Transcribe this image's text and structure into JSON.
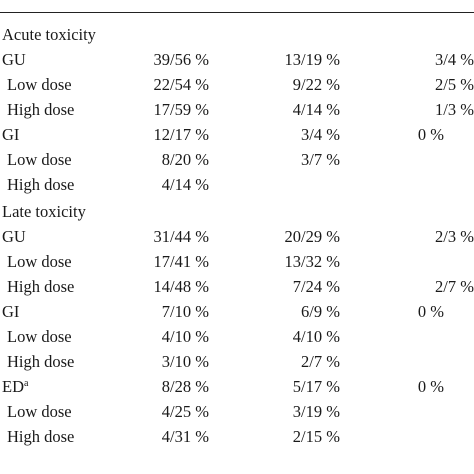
{
  "table": {
    "sections": [
      {
        "title": "Acute toxicity",
        "rows": [
          {
            "label": "GU",
            "indent": false,
            "c1": "39/56 %",
            "c2": "13/19 %",
            "c3": "3/4 %"
          },
          {
            "label": "Low dose",
            "indent": true,
            "c1": "22/54 %",
            "c2": "9/22 %",
            "c3": "2/5 %"
          },
          {
            "label": "High dose",
            "indent": true,
            "c1": "17/59 %",
            "c2": "4/14 %",
            "c3": "1/3 %"
          },
          {
            "label": "GI",
            "indent": false,
            "c1": "12/17 %",
            "c2": "3/4 %",
            "c3": "0 %"
          },
          {
            "label": "Low dose",
            "indent": true,
            "c1": "8/20 %",
            "c2": "3/7 %",
            "c3": ""
          },
          {
            "label": "High dose",
            "indent": true,
            "c1": "4/14 %",
            "c2": "",
            "c3": ""
          }
        ]
      },
      {
        "title": "Late toxicity",
        "rows": [
          {
            "label": "GU",
            "indent": false,
            "c1": "31/44 %",
            "c2": "20/29 %",
            "c3": "2/3 %"
          },
          {
            "label": "Low dose",
            "indent": true,
            "c1": "17/41 %",
            "c2": "13/32 %",
            "c3": ""
          },
          {
            "label": "High dose",
            "indent": true,
            "c1": "14/48 %",
            "c2": "7/24 %",
            "c3": "2/7 %"
          },
          {
            "label": "GI",
            "indent": false,
            "c1": "7/10 %",
            "c2": "6/9 %",
            "c3": "0 %"
          },
          {
            "label": "Low dose",
            "indent": true,
            "c1": "4/10 %",
            "c2": "4/10 %",
            "c3": ""
          },
          {
            "label": "High dose",
            "indent": true,
            "c1": "3/10 %",
            "c2": "2/7 %",
            "c3": ""
          },
          {
            "label": "ED",
            "sup": "a",
            "indent": false,
            "c1": "8/28 %",
            "c2": "5/17 %",
            "c3": "0 %"
          },
          {
            "label": "Low dose",
            "indent": true,
            "c1": "4/25 %",
            "c2": "3/19 %",
            "c3": ""
          },
          {
            "label": "High dose",
            "indent": true,
            "c1": "4/31 %",
            "c2": "2/15 %",
            "c3": ""
          }
        ]
      }
    ]
  }
}
